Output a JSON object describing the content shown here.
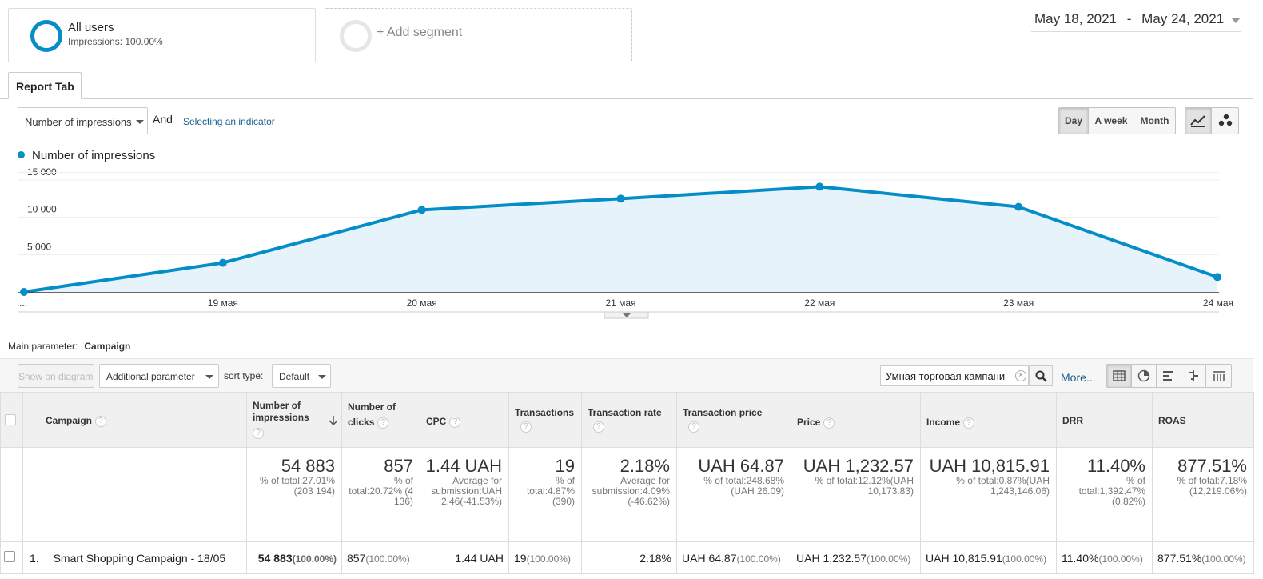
{
  "segments": {
    "primary": {
      "name": "All users",
      "sub": "Impressions: 100.00%"
    },
    "add_label": "+ Add segment"
  },
  "date_range": {
    "start": "May 18, 2021",
    "sep": "-",
    "end": "May 24, 2021"
  },
  "report_tab": "Report Tab",
  "controls": {
    "metric_dropdown": "Number of impressions",
    "and_label": "And",
    "select_indicator": "Selecting an indicator",
    "period_buttons": [
      "Day",
      "A week",
      "Month"
    ],
    "active_period": "Day"
  },
  "chart_data": {
    "type": "area",
    "legend": [
      "Number of impressions"
    ],
    "color": "#058dc7",
    "x": [
      "...",
      "19 мая",
      "20 мая",
      "21 мая",
      "22 мая",
      "23 мая",
      "24 мая"
    ],
    "series": [
      {
        "name": "Number of impressions",
        "values": [
          0,
          3900,
          11000,
          12500,
          14100,
          11400,
          2000
        ]
      }
    ],
    "ylim": [
      0,
      15000
    ],
    "yticks": [
      {
        "v": 5000,
        "label": "5 000"
      },
      {
        "v": 10000,
        "label": "10 000"
      },
      {
        "v": 15000,
        "label": "15 000"
      }
    ],
    "grid": true
  },
  "table_controls": {
    "main_param_label": "Main parameter:",
    "main_param_value": "Campaign",
    "show_on_diagram": "Show on diagram",
    "additional_param": "Additional parameter",
    "sort_type_label": "sort type:",
    "sort_type_value": "Default",
    "search_value": "Умная торговая кампани",
    "more": "More..."
  },
  "table": {
    "headers": [
      "Campaign",
      "Number of impressions",
      "Number of clicks",
      "CPC",
      "Transactions",
      "Transaction rate",
      "Transaction price",
      "Price",
      "Income",
      "DRR",
      "ROAS"
    ],
    "totals": [
      {
        "big": "54 883",
        "small": "% of total:27.01% (203 194)"
      },
      {
        "big": "857",
        "small": "% of total:20.72% (4 136)"
      },
      {
        "big": "1.44 UAH",
        "small": "Average for submission:UAH 2.46(-41.53%)"
      },
      {
        "big": "19",
        "small": "% of total:4.87% (390)"
      },
      {
        "big": "2.18%",
        "small": "Average for submission:4.09% (-46.62%)"
      },
      {
        "big": "UAH 64.87",
        "small": "% of total:248.68% (UAH 26.09)"
      },
      {
        "big": "UAH 1,232.57",
        "small": "% of total:12.12%(UAH 10,173.83)"
      },
      {
        "big": "UAH 10,815.91",
        "small": "% of total:0.87%(UAH 1,243,146.06)"
      },
      {
        "big": "11.40%",
        "small": "% of total:1,392.47% (0.82%)"
      },
      {
        "big": "877.51%",
        "small": "% of total:7.18% (12,219.06%)"
      }
    ],
    "rows": [
      {
        "index": "1.",
        "campaign": "Smart Shopping Campaign - 18/05",
        "cells": [
          {
            "v": "54 883",
            "p": "(100.00%)"
          },
          {
            "v": "857",
            "p": "(100.00%)"
          },
          {
            "v": "1.44 UAH",
            "p": ""
          },
          {
            "v": "19",
            "p": "(100.00%)"
          },
          {
            "v": "2.18%",
            "p": ""
          },
          {
            "v": "UAH 64.87",
            "p": "(100.00%)"
          },
          {
            "v": "UAH 1,232.57",
            "p": "(100.00%)"
          },
          {
            "v": "UAH 10,815.91",
            "p": "(100.00%)"
          },
          {
            "v": "11.40%",
            "p": "(100.00%)"
          },
          {
            "v": "877.51%",
            "p": "(100.00%)"
          }
        ]
      }
    ]
  }
}
